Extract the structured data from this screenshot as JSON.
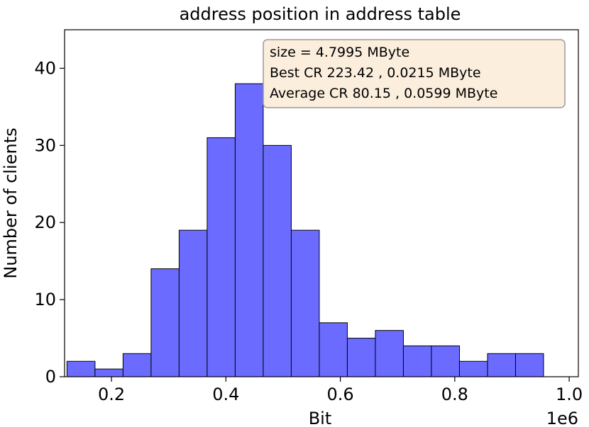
{
  "chart_data": {
    "type": "bar",
    "title": "address position in address table",
    "xlabel": "Bit",
    "ylabel": "Number of clients",
    "x_offset_text": "1e6",
    "bin_edges": [
      0.17,
      0.2175,
      0.265,
      0.3125,
      0.36,
      0.4075,
      0.455,
      0.5025,
      0.55,
      0.5975,
      0.645,
      0.6925,
      0.74,
      0.7875,
      0.835,
      0.8825,
      0.93,
      0.9775
    ],
    "bin_edges_fixed": [
      0.17,
      0.219,
      0.268,
      0.317,
      0.366,
      0.415,
      0.464,
      0.513,
      0.562,
      0.611,
      0.66,
      0.709,
      0.758,
      0.807,
      0.856,
      0.905,
      0.954,
      1.003
    ],
    "bins": [
      {
        "x0": 0.17,
        "x1": 0.219,
        "value": 2
      },
      {
        "x0": 0.219,
        "x1": 0.268,
        "value": 1
      },
      {
        "x0": 0.268,
        "x1": 0.317,
        "value": 3
      },
      {
        "x0": 0.317,
        "x1": 0.366,
        "value": 14
      },
      {
        "x0": 0.366,
        "x1": 0.415,
        "value": 19
      },
      {
        "x0": 0.415,
        "x1": 0.464,
        "value": 31
      },
      {
        "x0": 0.464,
        "x1": 0.513,
        "value": 38
      },
      {
        "x0": 0.513,
        "x1": 0.562,
        "value": 30
      },
      {
        "x0": 0.562,
        "x1": 0.611,
        "value": 19
      },
      {
        "x0": 0.611,
        "x1": 0.66,
        "value": 7
      },
      {
        "x0": 0.66,
        "x1": 0.709,
        "value": 5
      },
      {
        "x0": 0.709,
        "x1": 0.758,
        "value": 6
      },
      {
        "x0": 0.758,
        "x1": 0.807,
        "value": 4
      },
      {
        "x0": 0.807,
        "x1": 0.856,
        "value": 4
      },
      {
        "x0": 0.856,
        "x1": 0.905,
        "value": 2
      },
      {
        "x0": 0.905,
        "x1": 0.954,
        "value": 3
      },
      {
        "x0": 0.954,
        "x1": 1.003,
        "value": 3
      }
    ],
    "xlim": [
      0.155,
      1.02
    ],
    "ylim": [
      0,
      45
    ],
    "xticks": [
      {
        "value": 0.2,
        "label": "0.2"
      },
      {
        "value": 0.4,
        "label": "0.4"
      },
      {
        "value": 0.6,
        "label": "0.6"
      },
      {
        "value": 0.8,
        "label": "0.8"
      },
      {
        "value": 1.0,
        "label": "1.0"
      }
    ],
    "yticks": [
      {
        "value": 0,
        "label": "0"
      },
      {
        "value": 10,
        "label": "10"
      },
      {
        "value": 20,
        "label": "20"
      },
      {
        "value": 30,
        "label": "30"
      },
      {
        "value": 40,
        "label": "40"
      }
    ],
    "grid": false,
    "bar_color": "#6b6bff",
    "bar_edge_color": "#1a1a4d",
    "annotation": {
      "placement": "top-right",
      "background": "#fbeedd",
      "lines": [
        "size  = 4.7995 MByte",
        "Best CR   223.42 ,  0.0215 MByte",
        "Average CR   80.15 ,  0.0599 MByte"
      ]
    }
  }
}
